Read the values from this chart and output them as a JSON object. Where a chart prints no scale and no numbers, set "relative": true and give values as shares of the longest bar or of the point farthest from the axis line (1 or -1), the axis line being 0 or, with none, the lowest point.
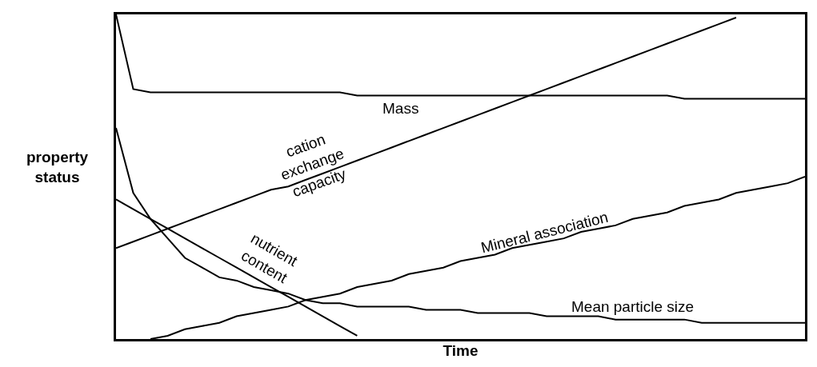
{
  "chart_data": {
    "type": "line",
    "relative": true,
    "xlabel": "Time",
    "ylabel": "property status",
    "legend": false,
    "grid": false,
    "marker": "none",
    "line_style": "solid",
    "categories": [
      null,
      null,
      null,
      null,
      null,
      null,
      null,
      null,
      null,
      null,
      null,
      null,
      null,
      null,
      null,
      null,
      null,
      null,
      null,
      null,
      null,
      null,
      null,
      null,
      null,
      null,
      null,
      null,
      null,
      null,
      null,
      null,
      null,
      null,
      null,
      null,
      null,
      null,
      null,
      null,
      null
    ],
    "series": [
      {
        "name": "Mass",
        "color": "#000000",
        "values": [
          1,
          0.77,
          0.76,
          0.76,
          0.76,
          0.76,
          0.76,
          0.76,
          0.76,
          0.76,
          0.76,
          0.76,
          0.76,
          0.76,
          0.75,
          0.75,
          0.75,
          0.75,
          0.75,
          0.75,
          0.75,
          0.75,
          0.75,
          0.75,
          0.75,
          0.75,
          0.75,
          0.75,
          0.75,
          0.75,
          0.75,
          0.75,
          0.75,
          0.74,
          0.74,
          0.74,
          0.74,
          0.74,
          0.74,
          0.74,
          0.74
        ]
      },
      {
        "name": "cation exchange capacity",
        "color": "#000000",
        "values": [
          0.28,
          0.3,
          0.32,
          0.34,
          0.36,
          0.38,
          0.4,
          0.42,
          0.44,
          0.46,
          0.47,
          0.49,
          0.51,
          0.53,
          0.55,
          0.57,
          0.59,
          0.61,
          0.63,
          0.65,
          0.67,
          0.69,
          0.71,
          0.73,
          0.75,
          0.77,
          0.79,
          0.81,
          0.83,
          0.85,
          0.87,
          0.89,
          0.91,
          0.93,
          0.95,
          0.97,
          0.99,
          null,
          null,
          null,
          null
        ]
      },
      {
        "name": "nutrient content",
        "color": "#000000",
        "values": [
          0.43,
          0.4,
          0.37,
          0.34,
          0.31,
          0.28,
          0.25,
          0.22,
          0.19,
          0.16,
          0.13,
          0.1,
          0.07,
          0.04,
          0.01,
          null,
          null,
          null,
          null,
          null,
          null,
          null,
          null,
          null,
          null,
          null,
          null,
          null,
          null,
          null,
          null,
          null,
          null,
          null,
          null,
          null,
          null,
          null,
          null,
          null,
          null
        ]
      },
      {
        "name": "Mineral association",
        "color": "#000000",
        "values": [
          null,
          null,
          0,
          0.01,
          0.03,
          0.04,
          0.05,
          0.07,
          0.08,
          0.09,
          0.1,
          0.12,
          0.13,
          0.14,
          0.16,
          0.17,
          0.18,
          0.2,
          0.21,
          0.22,
          0.24,
          0.25,
          0.26,
          0.28,
          0.29,
          0.3,
          0.31,
          0.33,
          0.34,
          0.35,
          0.37,
          0.38,
          0.39,
          0.41,
          0.42,
          0.43,
          0.45,
          0.46,
          0.47,
          0.48,
          0.5
        ]
      },
      {
        "name": "Mean particle size",
        "color": "#000000",
        "values": [
          0.65,
          0.45,
          0.37,
          0.31,
          0.25,
          0.22,
          0.19,
          0.18,
          0.16,
          0.15,
          0.14,
          0.12,
          0.11,
          0.11,
          0.1,
          0.1,
          0.1,
          0.1,
          0.09,
          0.09,
          0.09,
          0.08,
          0.08,
          0.08,
          0.08,
          0.07,
          0.07,
          0.07,
          0.07,
          0.06,
          0.06,
          0.06,
          0.06,
          0.06,
          0.05,
          0.05,
          0.05,
          0.05,
          0.05,
          0.05,
          0.05
        ]
      }
    ]
  }
}
